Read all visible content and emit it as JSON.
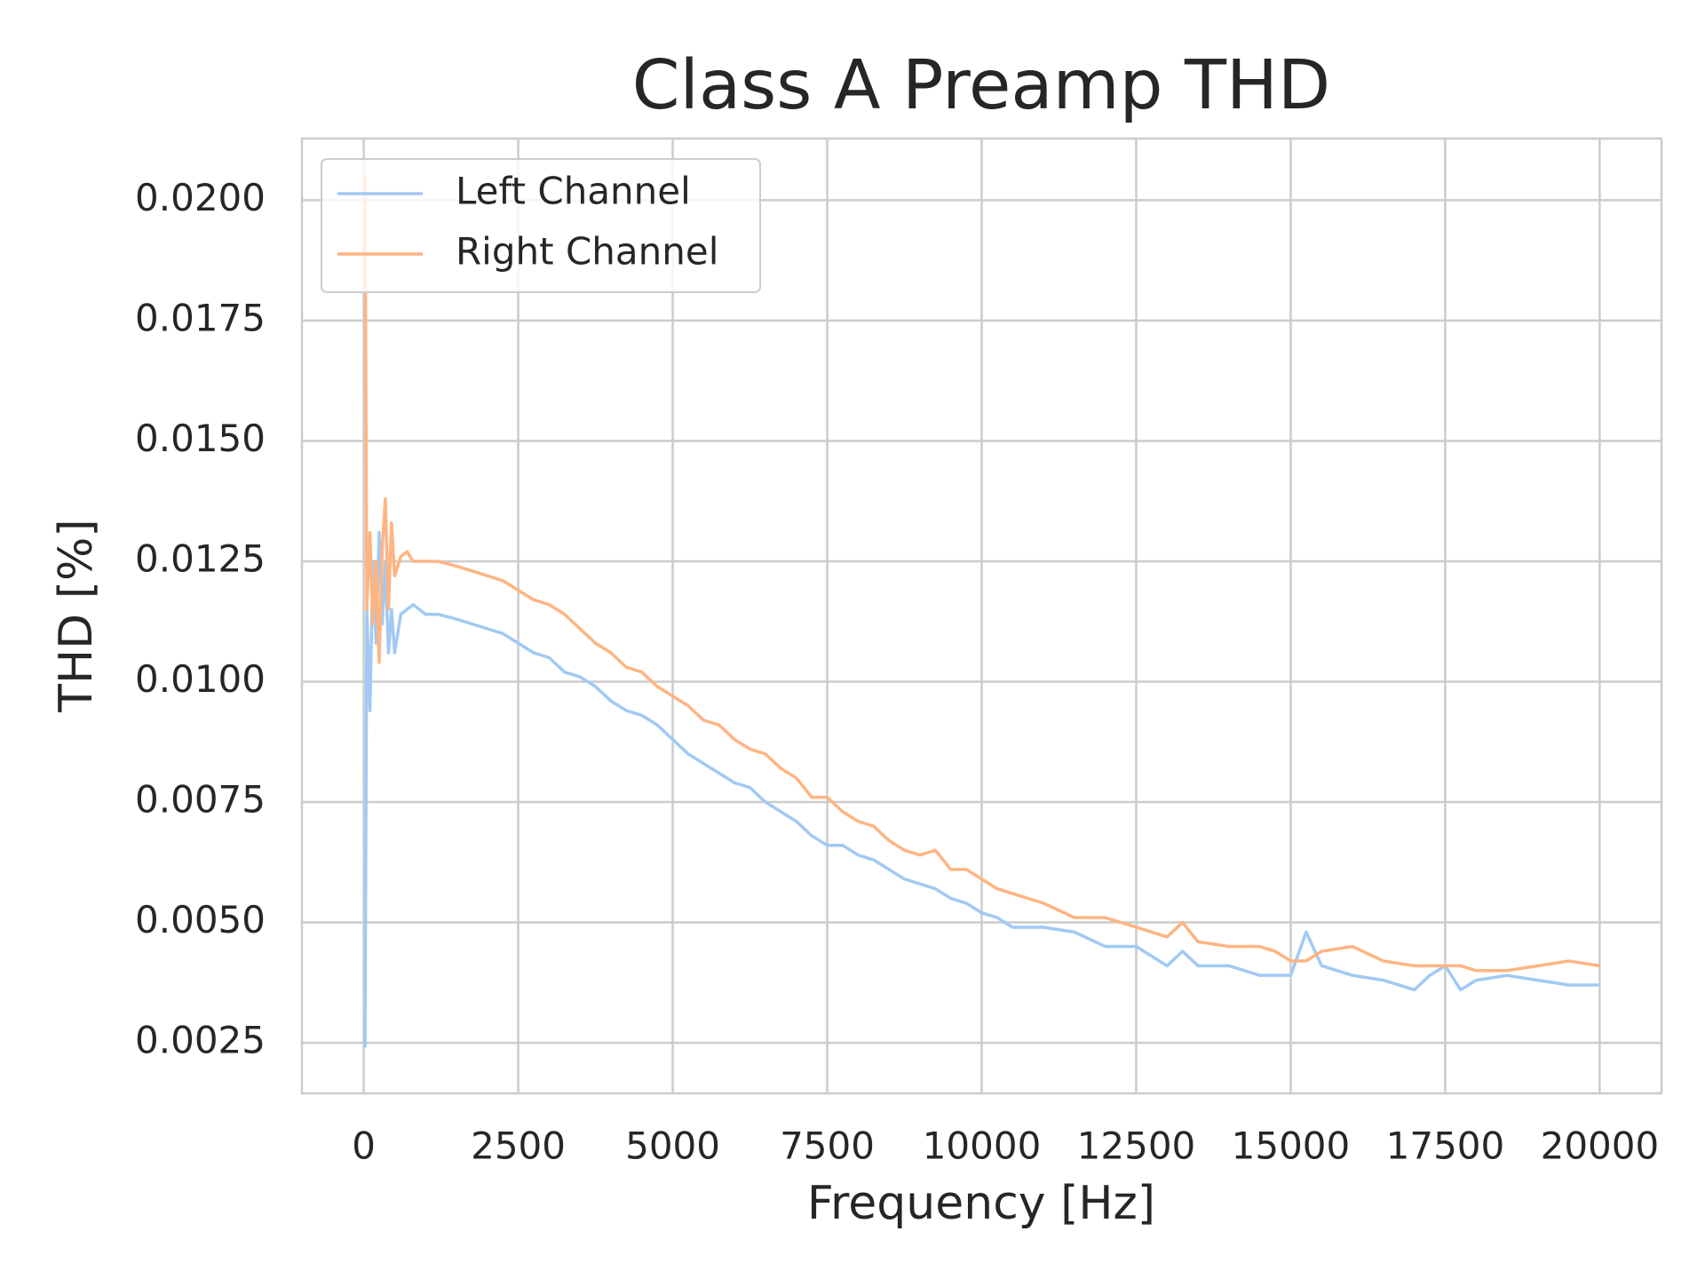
{
  "chart_data": {
    "type": "line",
    "title": "Class A Preamp THD",
    "xlabel": "Frequency [Hz]",
    "ylabel": "THD [%]",
    "x": [
      20,
      50,
      100,
      150,
      200,
      250,
      300,
      350,
      400,
      450,
      500,
      600,
      700,
      800,
      1000,
      1200,
      1500,
      1750,
      2000,
      2250,
      2500,
      2750,
      3000,
      3250,
      3500,
      3750,
      4000,
      4250,
      4500,
      4750,
      5000,
      5250,
      5500,
      5750,
      6000,
      6250,
      6500,
      6750,
      7000,
      7250,
      7500,
      7750,
      8000,
      8250,
      8500,
      8750,
      9000,
      9250,
      9500,
      9750,
      10000,
      10250,
      10500,
      10750,
      11000,
      11500,
      12000,
      12500,
      13000,
      13250,
      13500,
      14000,
      14500,
      14750,
      15000,
      15250,
      15500,
      16000,
      16500,
      17000,
      17250,
      17500,
      17750,
      18000,
      18500,
      19000,
      19500,
      20000
    ],
    "series": [
      {
        "name": "Left Channel",
        "color": "#a1c9f4",
        "values": [
          0.0024,
          0.0115,
          0.0094,
          0.0125,
          0.0108,
          0.0131,
          0.0112,
          0.0125,
          0.0106,
          0.0115,
          0.0106,
          0.0114,
          0.0115,
          0.0116,
          0.0114,
          0.0114,
          0.0113,
          0.0112,
          0.0111,
          0.011,
          0.0108,
          0.0106,
          0.0105,
          0.0102,
          0.0101,
          0.0099,
          0.0096,
          0.0094,
          0.0093,
          0.0091,
          0.0088,
          0.0085,
          0.0083,
          0.0081,
          0.0079,
          0.0078,
          0.0075,
          0.0073,
          0.0071,
          0.0068,
          0.0066,
          0.0066,
          0.0064,
          0.0063,
          0.0061,
          0.0059,
          0.0058,
          0.0057,
          0.0055,
          0.0054,
          0.0052,
          0.0051,
          0.0049,
          0.0049,
          0.0049,
          0.0048,
          0.0045,
          0.0045,
          0.0041,
          0.0044,
          0.0041,
          0.0041,
          0.0039,
          0.0039,
          0.0039,
          0.0048,
          0.0041,
          0.0039,
          0.0038,
          0.0036,
          0.0039,
          0.0041,
          0.0036,
          0.0038,
          0.0039,
          0.0038,
          0.0037,
          0.0037
        ]
      },
      {
        "name": "Right Channel",
        "color": "#ffb482",
        "values": [
          0.0205,
          0.0115,
          0.0131,
          0.0112,
          0.0125,
          0.0104,
          0.0128,
          0.0138,
          0.0115,
          0.0133,
          0.0122,
          0.0126,
          0.0127,
          0.0125,
          0.0125,
          0.0125,
          0.0124,
          0.0123,
          0.0122,
          0.0121,
          0.0119,
          0.0117,
          0.0116,
          0.0114,
          0.0111,
          0.0108,
          0.0106,
          0.0103,
          0.0102,
          0.0099,
          0.0097,
          0.0095,
          0.0092,
          0.0091,
          0.0088,
          0.0086,
          0.0085,
          0.0082,
          0.008,
          0.0076,
          0.0076,
          0.0073,
          0.0071,
          0.007,
          0.0067,
          0.0065,
          0.0064,
          0.0065,
          0.0061,
          0.0061,
          0.0059,
          0.0057,
          0.0056,
          0.0055,
          0.0054,
          0.0051,
          0.0051,
          0.0049,
          0.0047,
          0.005,
          0.0046,
          0.0045,
          0.0045,
          0.0044,
          0.0042,
          0.0042,
          0.0044,
          0.0045,
          0.0042,
          0.0041,
          0.0041,
          0.0041,
          0.0041,
          0.004,
          0.004,
          0.0041,
          0.0042,
          0.0041
        ]
      }
    ],
    "xlim": [
      -1000,
      21000
    ],
    "xticks": [
      0,
      2500,
      5000,
      7500,
      10000,
      12500,
      15000,
      17500,
      20000
    ],
    "ylim": [
      0.00145,
      0.02128
    ],
    "yticks": [
      0.0025,
      {
        "value": 0.005,
        "label": "0.0050"
      },
      0.0075,
      {
        "value": 0.01,
        "label": "0.0100"
      },
      0.0125,
      {
        "value": 0.015,
        "label": "0.0150"
      },
      0.0175,
      {
        "value": 0.02,
        "label": "0.0200"
      }
    ],
    "grid": true,
    "legend": "upper left"
  }
}
